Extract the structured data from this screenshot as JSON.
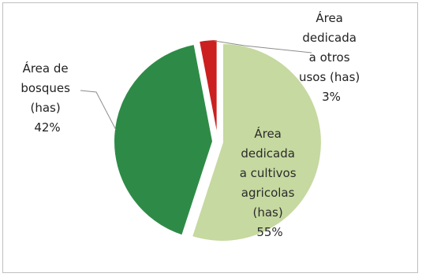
{
  "chart_data": {
    "type": "pie",
    "title": "",
    "series": [
      {
        "values": [
          55,
          42,
          3
        ],
        "slices": [
          {
            "key": "cultivos",
            "label_lines": [
              "Área",
              "dedicada",
              "a cultivos",
              "agricolas",
              "(has)"
            ],
            "percent_label": "55%",
            "value": 55,
            "color": "#c6d9a0"
          },
          {
            "key": "bosques",
            "label_lines": [
              "Área de",
              "bosques",
              "(has)"
            ],
            "percent_label": "42%",
            "value": 42,
            "color": "#2e8b47"
          },
          {
            "key": "otros",
            "label_lines": [
              "Área",
              "dedicada",
              "a otros",
              "usos (has)"
            ],
            "percent_label": "3%",
            "value": 3,
            "color": "#cc1f1f"
          }
        ]
      }
    ],
    "legend": "none",
    "exploded": true
  }
}
